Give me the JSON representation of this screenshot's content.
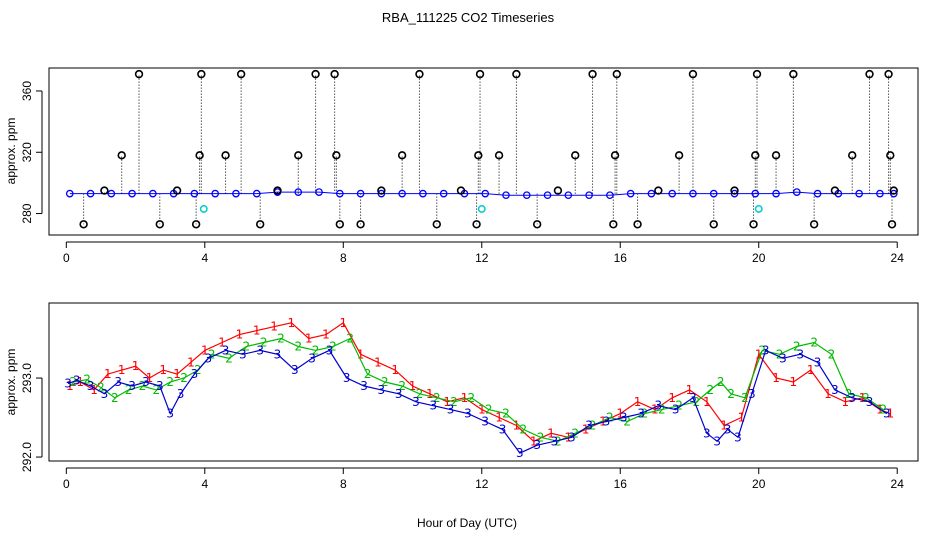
{
  "chart_data": [
    {
      "type": "scatter",
      "title": "RBA_111225  CO2 Timeseries",
      "xlabel": "",
      "ylabel": "approx. ppm",
      "xlim": [
        -0.5,
        24.6
      ],
      "ylim": [
        266,
        375
      ],
      "x_ticks": [
        0,
        4,
        8,
        12,
        16,
        20,
        24
      ],
      "y_ticks": [
        280,
        320,
        360
      ],
      "baseline_ppm": 293,
      "series": [
        {
          "name": "baseline",
          "color": "#0000ff",
          "x": [
            0.1,
            0.7,
            1.3,
            1.9,
            2.5,
            3.1,
            3.7,
            4.3,
            4.9,
            5.5,
            6.1,
            6.7,
            7.3,
            7.9,
            8.5,
            9.1,
            9.7,
            10.3,
            10.9,
            11.5,
            12.1,
            12.7,
            13.3,
            13.9,
            14.5,
            15.1,
            15.7,
            16.3,
            16.9,
            17.5,
            18.1,
            18.7,
            19.3,
            19.9,
            20.5,
            21.1,
            21.7,
            22.3,
            22.9,
            23.5,
            23.9
          ],
          "y": [
            293,
            293,
            293,
            293,
            293,
            293,
            293,
            293,
            293,
            293,
            294,
            294,
            294,
            293,
            293,
            293,
            293,
            293,
            293,
            293,
            293,
            292,
            292,
            292,
            292,
            292,
            292,
            293,
            293,
            293,
            293,
            293,
            293,
            293,
            293,
            294,
            293,
            293,
            293,
            293,
            293
          ]
        },
        {
          "name": "spikes",
          "color": "#000000",
          "x": [
            0.5,
            1.1,
            1.6,
            2.1,
            2.7,
            3.2,
            3.75,
            3.85,
            3.9,
            4.6,
            5.05,
            5.6,
            6.1,
            6.7,
            7.2,
            7.75,
            7.8,
            7.9,
            8.5,
            9.1,
            9.7,
            10.2,
            10.7,
            11.4,
            11.85,
            11.9,
            11.95,
            12.5,
            13.0,
            13.6,
            14.2,
            14.7,
            15.2,
            15.8,
            15.85,
            15.9,
            16.5,
            17.1,
            17.7,
            18.1,
            18.7,
            19.3,
            19.85,
            19.9,
            19.95,
            20.5,
            21.0,
            21.6,
            22.2,
            22.7,
            23.2,
            23.75,
            23.8,
            23.85,
            23.9
          ],
          "y": [
            273,
            295,
            318,
            371,
            273,
            295,
            273,
            318,
            371,
            318,
            371,
            273,
            295,
            318,
            371,
            371,
            318,
            273,
            273,
            295,
            318,
            371,
            273,
            295,
            273,
            318,
            371,
            318,
            371,
            273,
            295,
            318,
            371,
            273,
            318,
            371,
            273,
            295,
            318,
            371,
            273,
            295,
            273,
            318,
            371,
            318,
            371,
            273,
            295,
            318,
            371,
            371,
            318,
            273,
            295
          ]
        },
        {
          "name": "cyan points",
          "color": "#00cccc",
          "x": [
            3.97,
            12.0,
            20.0
          ],
          "y": [
            283,
            283,
            283
          ]
        }
      ]
    },
    {
      "type": "line",
      "title": "",
      "xlabel": "Hour of Day (UTC)",
      "ylabel": "approx. ppm",
      "xlim": [
        -0.5,
        24.6
      ],
      "ylim": [
        291.95,
        293.95
      ],
      "x_ticks": [
        0,
        4,
        8,
        12,
        16,
        20,
        24
      ],
      "y_ticks": [
        292.0,
        293.0
      ],
      "series": [
        {
          "name": "1",
          "color": "#ff0000",
          "x": [
            0.1,
            0.4,
            0.8,
            1.2,
            1.6,
            2.0,
            2.4,
            2.8,
            3.2,
            3.6,
            4.0,
            4.5,
            5.0,
            5.5,
            6.0,
            6.5,
            7.0,
            7.5,
            8.0,
            8.5,
            9.0,
            9.5,
            10.0,
            10.5,
            11.0,
            11.5,
            12.0,
            12.5,
            13.0,
            13.5,
            14.0,
            14.5,
            15.0,
            15.5,
            16.0,
            16.5,
            17.0,
            17.5,
            18.0,
            18.5,
            19.0,
            19.5,
            20.0,
            20.5,
            21.0,
            21.5,
            22.0,
            22.5,
            23.0,
            23.5,
            23.8
          ],
          "y": [
            292.9,
            292.95,
            292.85,
            293.05,
            293.1,
            293.15,
            293.0,
            293.1,
            293.05,
            293.2,
            293.35,
            293.45,
            293.55,
            293.6,
            293.65,
            293.7,
            293.5,
            293.55,
            293.7,
            293.3,
            293.2,
            293.1,
            292.9,
            292.8,
            292.7,
            292.75,
            292.6,
            292.5,
            292.4,
            292.2,
            292.3,
            292.25,
            292.35,
            292.45,
            292.55,
            292.7,
            292.6,
            292.75,
            292.85,
            292.7,
            292.4,
            292.5,
            293.3,
            293.0,
            292.95,
            293.1,
            292.8,
            292.7,
            292.75,
            292.6,
            292.55
          ]
        },
        {
          "name": "2",
          "color": "#00bb00",
          "x": [
            0.2,
            0.6,
            1.0,
            1.4,
            1.8,
            2.2,
            2.6,
            3.0,
            3.4,
            3.8,
            4.2,
            4.7,
            5.2,
            5.7,
            6.2,
            6.7,
            7.2,
            7.7,
            8.2,
            8.7,
            9.2,
            9.7,
            10.2,
            10.7,
            11.2,
            11.7,
            12.2,
            12.7,
            13.2,
            13.7,
            14.2,
            14.7,
            15.2,
            15.7,
            16.2,
            16.7,
            17.2,
            17.7,
            18.2,
            18.6,
            18.9,
            19.2,
            19.6,
            20.1,
            20.6,
            21.1,
            21.6,
            22.1,
            22.6,
            23.1,
            23.6
          ],
          "y": [
            292.95,
            292.98,
            292.88,
            292.75,
            292.85,
            292.9,
            292.85,
            292.95,
            293.0,
            293.1,
            293.3,
            293.25,
            293.4,
            293.45,
            293.5,
            293.4,
            293.35,
            293.4,
            293.5,
            293.05,
            292.95,
            292.9,
            292.8,
            292.75,
            292.7,
            292.75,
            292.6,
            292.55,
            292.35,
            292.25,
            292.2,
            292.3,
            292.4,
            292.5,
            292.45,
            292.55,
            292.6,
            292.65,
            292.7,
            292.85,
            292.95,
            292.8,
            292.75,
            293.35,
            293.3,
            293.4,
            293.45,
            293.3,
            292.8,
            292.75,
            292.6
          ]
        },
        {
          "name": "3",
          "color": "#0000cc",
          "x": [
            0.05,
            0.3,
            0.7,
            1.1,
            1.5,
            1.9,
            2.3,
            2.7,
            3.0,
            3.3,
            3.7,
            4.1,
            4.6,
            5.1,
            5.6,
            6.1,
            6.6,
            7.1,
            7.6,
            8.1,
            8.6,
            9.1,
            9.6,
            10.1,
            10.6,
            11.1,
            11.6,
            12.1,
            12.6,
            13.1,
            13.6,
            14.1,
            14.6,
            15.1,
            15.6,
            16.1,
            16.6,
            17.1,
            17.6,
            18.1,
            18.5,
            18.8,
            19.1,
            19.4,
            19.8,
            20.2,
            20.7,
            21.2,
            21.7,
            22.2,
            22.7,
            23.2,
            23.7
          ],
          "y": [
            292.93,
            292.97,
            292.9,
            292.8,
            292.95,
            292.9,
            292.95,
            292.9,
            292.55,
            292.8,
            293.05,
            293.25,
            293.35,
            293.3,
            293.35,
            293.3,
            293.1,
            293.25,
            293.35,
            293.0,
            292.9,
            292.85,
            292.8,
            292.7,
            292.65,
            292.6,
            292.55,
            292.45,
            292.35,
            292.05,
            292.15,
            292.2,
            292.25,
            292.4,
            292.45,
            292.5,
            292.55,
            292.65,
            292.6,
            292.75,
            292.3,
            292.2,
            292.35,
            292.25,
            292.8,
            293.35,
            293.25,
            293.3,
            293.2,
            292.85,
            292.75,
            292.7,
            292.55
          ]
        }
      ]
    }
  ]
}
